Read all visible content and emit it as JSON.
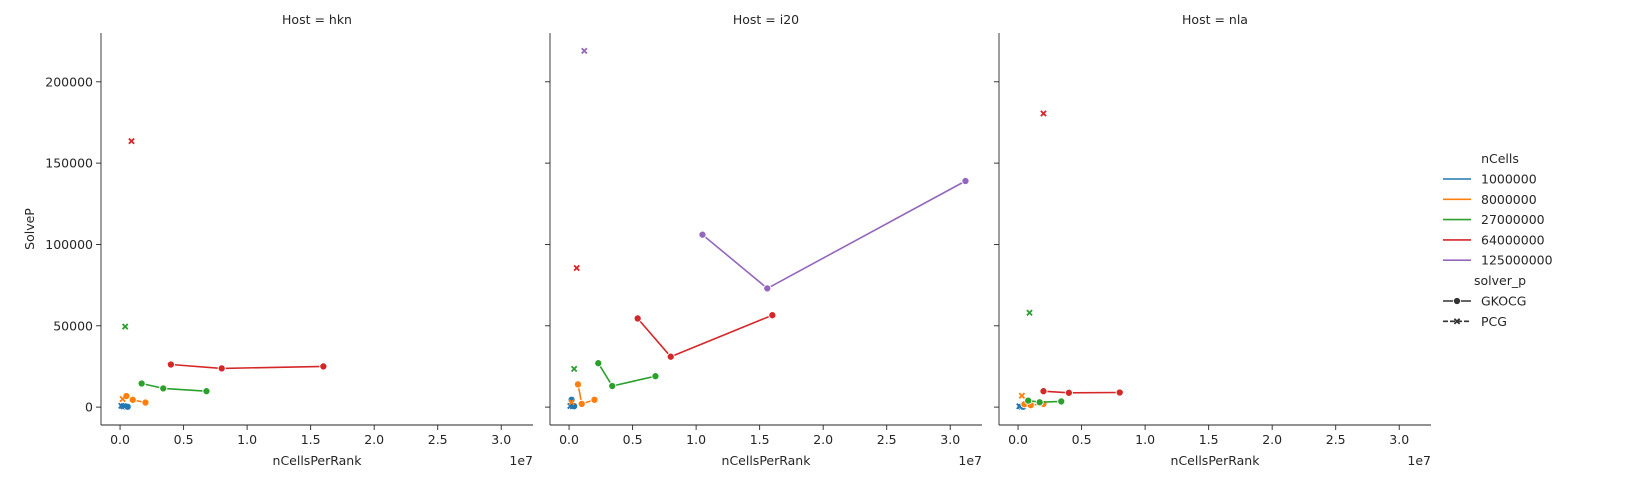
{
  "chart_data": {
    "type": "line",
    "y_label": "SolveP",
    "x_label": "nCellsPerRank",
    "x_offset_label": "1e7",
    "x_ticks": [
      0.0,
      0.5,
      1.0,
      1.5,
      2.0,
      2.5,
      3.0
    ],
    "x_tick_labels": [
      "0.0",
      "0.5",
      "1.0",
      "1.5",
      "2.0",
      "2.5",
      "3.0"
    ],
    "y_ticks": [
      0,
      50000,
      100000,
      150000,
      200000
    ],
    "y_tick_labels": [
      "0",
      "50000",
      "100000",
      "150000",
      "200000"
    ],
    "xlim": [
      -0.15,
      3.25
    ],
    "ylim": [
      -11000,
      230000
    ],
    "colors": {
      "1000000": "#1f77b4",
      "8000000": "#ff7f0e",
      "27000000": "#2ca02c",
      "64000000": "#d62728",
      "125000000": "#9467bd"
    },
    "legend": {
      "hue_title": "nCells",
      "hue_entries": [
        "1000000",
        "8000000",
        "27000000",
        "64000000",
        "125000000"
      ],
      "style_title": "solver_p",
      "style_entries": [
        {
          "label": "GKOCG",
          "marker": "circle",
          "dash": false
        },
        {
          "label": "PCG",
          "marker": "x",
          "dash": true
        }
      ]
    },
    "panels": [
      {
        "title": "Host = hkn",
        "series": [
          {
            "hue": "1000000",
            "solver": "GKOCG",
            "points": [
              [
                0.02,
                400
              ],
              [
                0.04,
                300
              ],
              [
                0.06,
                200
              ]
            ]
          },
          {
            "hue": "1000000",
            "solver": "PCG",
            "points": [
              [
                0.01,
                800
              ],
              [
                0.03,
                600
              ]
            ]
          },
          {
            "hue": "8000000",
            "solver": "GKOCG",
            "points": [
              [
                0.05,
                6800
              ],
              [
                0.1,
                4500
              ],
              [
                0.2,
                2800
              ]
            ]
          },
          {
            "hue": "8000000",
            "solver": "PCG",
            "points": [
              [
                0.02,
                5000
              ]
            ]
          },
          {
            "hue": "27000000",
            "solver": "GKOCG",
            "points": [
              [
                0.17,
                14500
              ],
              [
                0.34,
                11500
              ],
              [
                0.68,
                9800
              ]
            ]
          },
          {
            "hue": "27000000",
            "solver": "PCG",
            "points": [
              [
                0.04,
                49500
              ]
            ]
          },
          {
            "hue": "64000000",
            "solver": "GKOCG",
            "points": [
              [
                0.4,
                26200
              ],
              [
                0.8,
                23800
              ],
              [
                1.6,
                25000
              ]
            ]
          },
          {
            "hue": "64000000",
            "solver": "PCG",
            "points": [
              [
                0.09,
                163500
              ]
            ]
          }
        ]
      },
      {
        "title": "Host = i20",
        "series": [
          {
            "hue": "1000000",
            "solver": "GKOCG",
            "points": [
              [
                0.02,
                4500
              ],
              [
                0.04,
                600
              ]
            ]
          },
          {
            "hue": "1000000",
            "solver": "PCG",
            "points": [
              [
                0.01,
                700
              ],
              [
                0.03,
                500
              ]
            ]
          },
          {
            "hue": "8000000",
            "solver": "GKOCG",
            "points": [
              [
                0.07,
                14000
              ],
              [
                0.1,
                2000
              ],
              [
                0.2,
                4500
              ]
            ]
          },
          {
            "hue": "8000000",
            "solver": "PCG",
            "points": [
              [
                0.02,
                3000
              ]
            ]
          },
          {
            "hue": "27000000",
            "solver": "GKOCG",
            "points": [
              [
                0.23,
                27000
              ],
              [
                0.34,
                13000
              ],
              [
                0.68,
                19000
              ]
            ]
          },
          {
            "hue": "27000000",
            "solver": "PCG",
            "points": [
              [
                0.04,
                23500
              ]
            ]
          },
          {
            "hue": "64000000",
            "solver": "GKOCG",
            "points": [
              [
                0.54,
                54500
              ],
              [
                0.8,
                31000
              ],
              [
                1.6,
                56500
              ]
            ]
          },
          {
            "hue": "64000000",
            "solver": "PCG",
            "points": [
              [
                0.06,
                85500
              ]
            ]
          },
          {
            "hue": "125000000",
            "solver": "GKOCG",
            "points": [
              [
                1.05,
                106000
              ],
              [
                1.56,
                73000
              ],
              [
                3.12,
                139000
              ]
            ]
          },
          {
            "hue": "125000000",
            "solver": "PCG",
            "points": [
              [
                0.12,
                219000
              ]
            ]
          }
        ]
      },
      {
        "title": "Host = nla",
        "series": [
          {
            "hue": "1000000",
            "solver": "GKOCG",
            "points": [
              [
                0.02,
                300
              ],
              [
                0.04,
                200
              ]
            ]
          },
          {
            "hue": "1000000",
            "solver": "PCG",
            "points": [
              [
                0.01,
                500
              ]
            ]
          },
          {
            "hue": "8000000",
            "solver": "GKOCG",
            "points": [
              [
                0.05,
                1800
              ],
              [
                0.1,
                1200
              ],
              [
                0.2,
                2000
              ]
            ]
          },
          {
            "hue": "8000000",
            "solver": "PCG",
            "points": [
              [
                0.03,
                7000
              ]
            ]
          },
          {
            "hue": "27000000",
            "solver": "GKOCG",
            "points": [
              [
                0.08,
                4000
              ],
              [
                0.17,
                3000
              ],
              [
                0.34,
                3500
              ]
            ]
          },
          {
            "hue": "27000000",
            "solver": "PCG",
            "points": [
              [
                0.09,
                58000
              ]
            ]
          },
          {
            "hue": "64000000",
            "solver": "GKOCG",
            "points": [
              [
                0.2,
                9800
              ],
              [
                0.4,
                8800
              ],
              [
                0.8,
                9000
              ]
            ]
          },
          {
            "hue": "64000000",
            "solver": "PCG",
            "points": [
              [
                0.2,
                180500
              ]
            ]
          }
        ]
      }
    ]
  }
}
